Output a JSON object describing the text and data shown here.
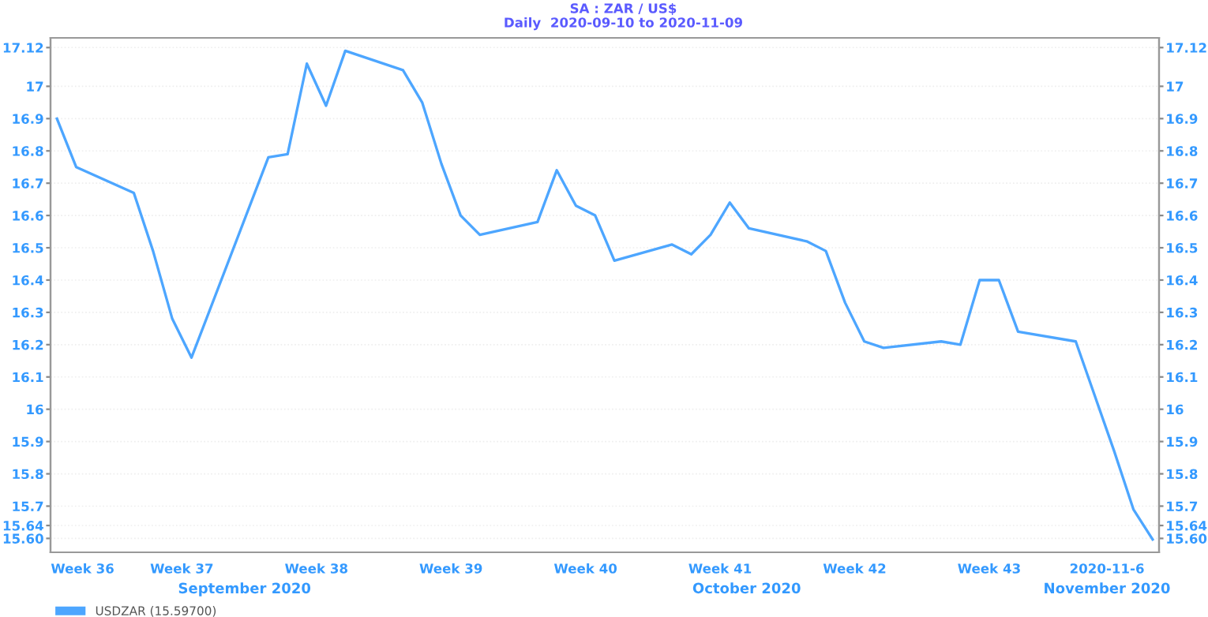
{
  "chart_data": {
    "type": "line",
    "title": "SA : ZAR / US$",
    "subtitle": "Daily  2020-09-10 to 2020-11-09",
    "annotations": [
      "September 2020",
      "October 2020",
      "November 2020"
    ],
    "x": [
      "2020-09-11",
      "2020-09-12",
      "2020-09-15",
      "2020-09-16",
      "2020-09-17",
      "2020-09-18",
      "2020-09-22",
      "2020-09-23",
      "2020-09-24",
      "2020-09-25",
      "2020-09-26",
      "2020-09-29",
      "2020-09-30",
      "2020-10-01",
      "2020-10-02",
      "2020-10-03",
      "2020-10-06",
      "2020-10-07",
      "2020-10-08",
      "2020-10-09",
      "2020-10-10",
      "2020-10-13",
      "2020-10-14",
      "2020-10-15",
      "2020-10-16",
      "2020-10-17",
      "2020-10-20",
      "2020-10-21",
      "2020-10-22",
      "2020-10-23",
      "2020-10-24",
      "2020-10-27",
      "2020-10-28",
      "2020-10-29",
      "2020-10-30",
      "2020-10-31",
      "2020-11-03",
      "2020-11-04",
      "2020-11-05",
      "2020-11-06",
      "2020-11-07"
    ],
    "series": [
      {
        "name": "USDZAR (15.59700)",
        "color": "#4da6ff",
        "values": [
          16.9,
          16.75,
          16.67,
          16.49,
          16.28,
          16.16,
          16.78,
          16.79,
          17.07,
          16.94,
          17.11,
          17.05,
          16.95,
          16.76,
          16.6,
          16.54,
          16.58,
          16.74,
          16.63,
          16.6,
          16.46,
          16.51,
          16.48,
          16.54,
          16.64,
          16.56,
          16.52,
          16.49,
          16.33,
          16.21,
          16.19,
          16.21,
          16.2,
          16.4,
          16.4,
          16.24,
          16.21,
          16.04,
          15.87,
          15.69,
          15.597
        ]
      }
    ],
    "xlim": [
      "2020-09-10T16:00",
      "2020-11-07T08:00"
    ],
    "xticks": [
      {
        "value": "2020-09-12T08:00",
        "label": "Week 36"
      },
      {
        "value": "2020-09-17T12:00",
        "label": "Week 37"
      },
      {
        "value": "2020-09-24T12:00",
        "label": "Week 38"
      },
      {
        "value": "2020-10-01T12:00",
        "label": "Week 39"
      },
      {
        "value": "2020-10-08T12:00",
        "label": "Week 40"
      },
      {
        "value": "2020-10-15T12:00",
        "label": "Week 41"
      },
      {
        "value": "2020-10-22T12:00",
        "label": "Week 42"
      },
      {
        "value": "2020-10-29T12:00",
        "label": "Week 43"
      },
      {
        "value": "2020-11-04T15:00",
        "label": "2020-11-6"
      }
    ],
    "ylim": [
      15.557,
      17.15
    ],
    "yticks": [
      {
        "value": 15.6,
        "label": "15.60"
      },
      15.64,
      15.7,
      15.8,
      15.9,
      16,
      16.1,
      16.2,
      16.3,
      16.4,
      16.5,
      16.6,
      16.7,
      16.8,
      16.9,
      17,
      17.12
    ],
    "y2lim": [
      15.557,
      17.15
    ],
    "y2ticks": [
      {
        "value": 15.6,
        "label": "15.60"
      },
      15.64,
      15.7,
      15.8,
      15.9,
      16,
      16.1,
      16.2,
      16.3,
      16.4,
      16.5,
      16.6,
      16.7,
      16.8,
      16.9,
      17,
      17.12
    ],
    "grid": "y",
    "legend": "bottom left",
    "marker": "none",
    "line_style": "solid"
  }
}
